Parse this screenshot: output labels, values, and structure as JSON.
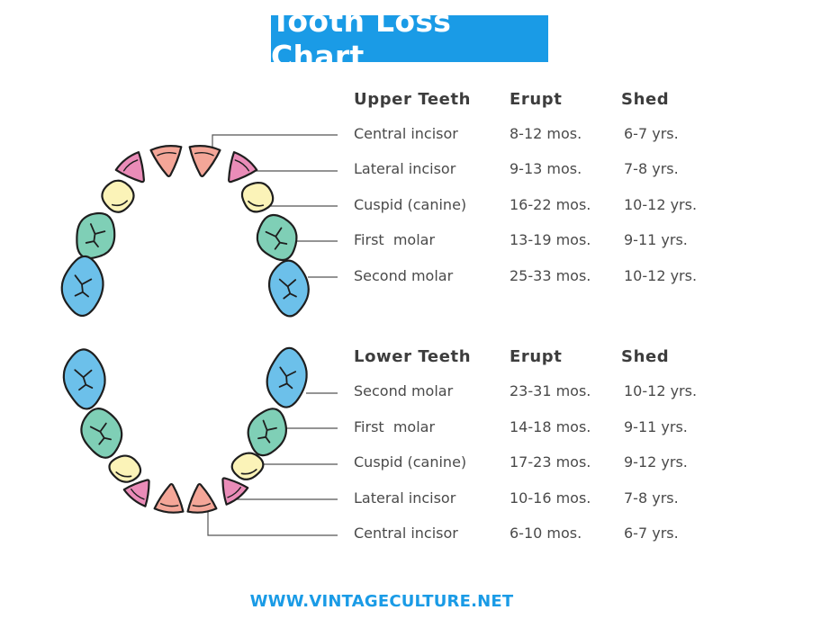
{
  "title": "Tooth Loss Chart",
  "footer": "WWW.VINTAGECULTURE.NET",
  "colors": {
    "title_bg": "#1a9be6",
    "footer_text": "#1a9be6",
    "incisor_central": "#f4a698",
    "incisor_lateral": "#ea8cb8",
    "cuspid": "#fbf3b8",
    "first_molar": "#7fcfb6",
    "second_molar": "#6cc0ea",
    "outline": "#1e1e1e",
    "leader_line": "#555555"
  },
  "upper": {
    "headers": {
      "tooth": "Upper Teeth",
      "erupt": "Erupt",
      "shed": "Shed"
    },
    "rows": [
      {
        "tooth": "Central incisor",
        "erupt": "8-12 mos.",
        "shed": "6-7 yrs."
      },
      {
        "tooth": "Lateral incisor",
        "erupt": "9-13 mos.",
        "shed": "7-8 yrs."
      },
      {
        "tooth": "Cuspid (canine)",
        "erupt": "16-22 mos.",
        "shed": "10-12 yrs."
      },
      {
        "tooth": "First  molar",
        "erupt": "13-19 mos.",
        "shed": "9-11 yrs."
      },
      {
        "tooth": "Second molar",
        "erupt": "25-33 mos.",
        "shed": "10-12 yrs."
      }
    ]
  },
  "lower": {
    "headers": {
      "tooth": "Lower Teeth",
      "erupt": "Erupt",
      "shed": "Shed"
    },
    "rows": [
      {
        "tooth": "Second molar",
        "erupt": "23-31 mos.",
        "shed": "10-12 yrs."
      },
      {
        "tooth": "First  molar",
        "erupt": "14-18 mos.",
        "shed": "9-11 yrs."
      },
      {
        "tooth": "Cuspid (canine)",
        "erupt": "17-23 mos.",
        "shed": "9-12 yrs."
      },
      {
        "tooth": "Lateral incisor",
        "erupt": "10-16 mos.",
        "shed": "7-8 yrs."
      },
      {
        "tooth": "Central incisor",
        "erupt": "6-10 mos.",
        "shed": "6-7 yrs."
      }
    ]
  }
}
